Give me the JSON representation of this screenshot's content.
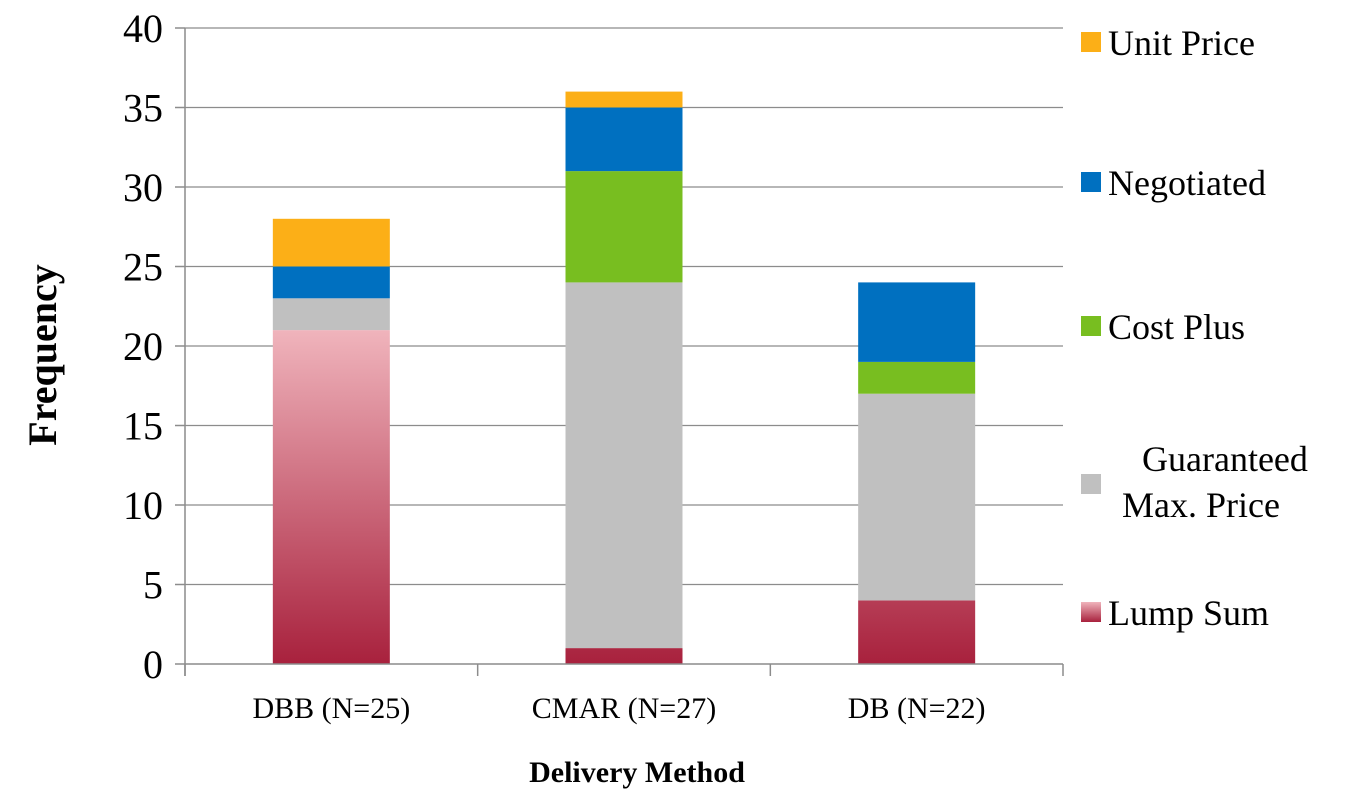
{
  "chart_data": {
    "type": "bar",
    "stacked": true,
    "categories": [
      "DBB (N=25)",
      "CMAR (N=27)",
      "DB (N=22)"
    ],
    "xlabel": "Delivery Method",
    "ylabel": "Frequency",
    "ylim": [
      0,
      40
    ],
    "yticks": [
      0,
      5,
      10,
      15,
      20,
      25,
      30,
      35,
      40
    ],
    "grid": true,
    "legend_position": "right",
    "series": [
      {
        "name": "Lump Sum",
        "values": [
          21,
          1,
          4
        ],
        "color": "#a8213d",
        "color_light": "#f0b4bc",
        "gradient": true
      },
      {
        "name": "Guaranteed Max. Price",
        "values": [
          2,
          23,
          13
        ],
        "color": "#c0c0c0"
      },
      {
        "name": "Cost Plus",
        "values": [
          0,
          7,
          2
        ],
        "color": "#78be20"
      },
      {
        "name": "Negotiated",
        "values": [
          2,
          4,
          5
        ],
        "color": "#0070c0"
      },
      {
        "name": "Unit Price",
        "values": [
          3,
          1,
          0
        ],
        "color": "#fcaf17"
      }
    ],
    "legend": [
      {
        "lines": [
          "Unit Price"
        ],
        "series": "Unit Price"
      },
      {
        "lines": [
          "Negotiated"
        ],
        "series": "Negotiated"
      },
      {
        "lines": [
          "Cost Plus"
        ],
        "series": "Cost Plus"
      },
      {
        "lines": [
          "Guaranteed",
          "Max. Price"
        ],
        "series": "Guaranteed Max. Price"
      },
      {
        "lines": [
          "Lump Sum"
        ],
        "series": "Lump Sum"
      }
    ]
  }
}
